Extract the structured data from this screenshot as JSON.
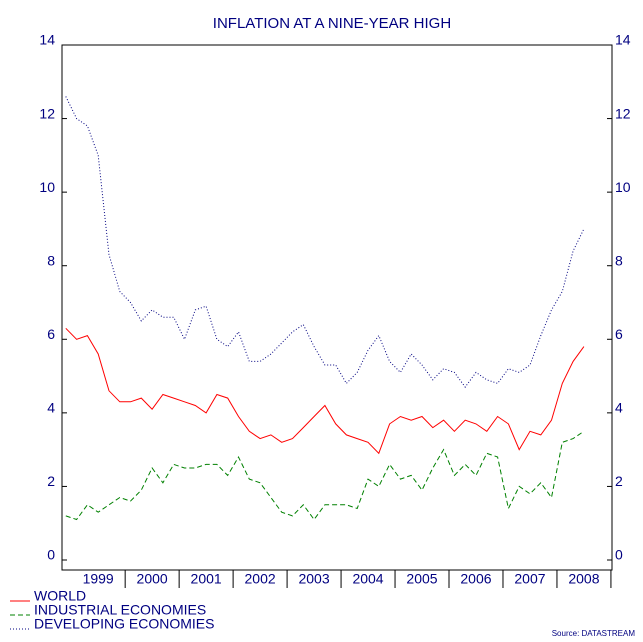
{
  "chart_data": {
    "type": "line",
    "title": "INFLATION AT A NINE-YEAR HIGH",
    "source": "Source: DATASTREAM",
    "x": [
      1998.4,
      1998.6,
      1998.8,
      1999.0,
      1999.2,
      1999.4,
      1999.6,
      1999.8,
      2000.0,
      2000.2,
      2000.4,
      2000.6,
      2000.8,
      2001.0,
      2001.2,
      2001.4,
      2001.6,
      2001.8,
      2002.0,
      2002.2,
      2002.4,
      2002.6,
      2002.8,
      2003.0,
      2003.2,
      2003.4,
      2003.6,
      2003.8,
      2004.0,
      2004.2,
      2004.4,
      2004.6,
      2004.8,
      2005.0,
      2005.2,
      2005.4,
      2005.6,
      2005.8,
      2006.0,
      2006.2,
      2006.4,
      2006.6,
      2006.8,
      2007.0,
      2007.2,
      2007.4,
      2007.6,
      2007.8,
      2008.0
    ],
    "series": [
      {
        "name": "WORLD",
        "color": "#ff0000",
        "style": "solid",
        "values": [
          6.3,
          6.0,
          6.1,
          5.6,
          4.6,
          4.3,
          4.3,
          4.4,
          4.1,
          4.5,
          4.4,
          4.3,
          4.2,
          4.0,
          4.5,
          4.4,
          3.9,
          3.5,
          3.3,
          3.4,
          3.2,
          3.3,
          3.6,
          3.9,
          4.2,
          3.7,
          3.4,
          3.3,
          3.2,
          2.9,
          3.7,
          3.9,
          3.8,
          3.9,
          3.6,
          3.8,
          3.5,
          3.8,
          3.7,
          3.5,
          3.9,
          3.7,
          3.0,
          3.5,
          3.4,
          3.8,
          4.8,
          5.4,
          5.8
        ]
      },
      {
        "name": "INDUSTRIAL ECONOMIES",
        "color": "#008000",
        "style": "dashed",
        "values": [
          1.2,
          1.1,
          1.5,
          1.3,
          1.5,
          1.7,
          1.6,
          1.9,
          2.5,
          2.1,
          2.6,
          2.5,
          2.5,
          2.6,
          2.6,
          2.3,
          2.8,
          2.2,
          2.1,
          1.7,
          1.3,
          1.2,
          1.5,
          1.1,
          1.5,
          1.5,
          1.5,
          1.4,
          2.2,
          2.0,
          2.6,
          2.2,
          2.3,
          1.9,
          2.5,
          3.0,
          2.3,
          2.6,
          2.3,
          2.9,
          2.8,
          1.4,
          2.0,
          1.8,
          2.1,
          1.7,
          3.2,
          3.3,
          3.5
        ]
      },
      {
        "name": "DEVELOPING ECONOMIES",
        "color": "#000080",
        "style": "dotted",
        "values": [
          12.6,
          12.0,
          11.8,
          11.0,
          8.3,
          7.3,
          7.0,
          6.5,
          6.8,
          6.6,
          6.6,
          6.0,
          6.8,
          6.9,
          6.0,
          5.8,
          6.2,
          5.4,
          5.4,
          5.6,
          5.9,
          6.2,
          6.4,
          5.8,
          5.3,
          5.3,
          4.8,
          5.1,
          5.7,
          6.1,
          5.4,
          5.1,
          5.6,
          5.3,
          4.9,
          5.2,
          5.1,
          4.7,
          5.1,
          4.9,
          4.8,
          5.2,
          5.1,
          5.3,
          6.1,
          6.8,
          7.3,
          8.4,
          9.0
        ]
      }
    ],
    "xlim": [
      1998.33,
      2008.52
    ],
    "xticks": [
      1999,
      2000,
      2001,
      2002,
      2003,
      2004,
      2005,
      2006,
      2007,
      2008
    ],
    "ylim": [
      0,
      14
    ],
    "yticks": [
      0,
      2,
      4,
      6,
      8,
      10,
      12,
      14
    ],
    "y2lim": [
      0,
      14
    ],
    "y2ticks": [
      0,
      2,
      4,
      6,
      8,
      10,
      12,
      14
    ],
    "legend": "bottom-left"
  }
}
